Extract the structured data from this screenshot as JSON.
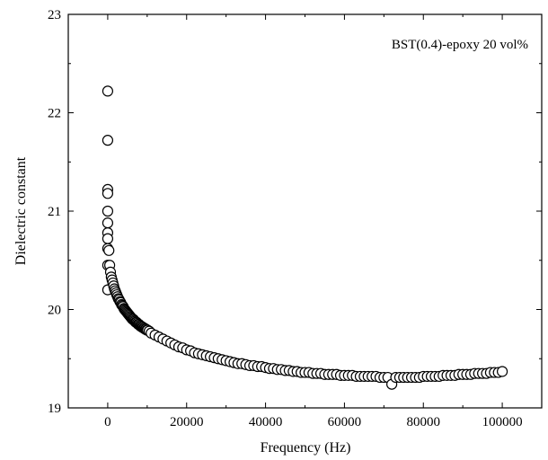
{
  "chart_data": {
    "type": "scatter",
    "title": "",
    "xlabel": "Frequency (Hz)",
    "ylabel": "Dielectric constant",
    "annotation": "BST(0.4)-epoxy 20 vol%",
    "xlim": [
      -10000,
      110000
    ],
    "ylim": [
      19,
      23
    ],
    "xticks": [
      0,
      20000,
      40000,
      60000,
      80000,
      100000
    ],
    "xtick_labels": [
      "0",
      "20000",
      "40000",
      "60000",
      "80000",
      "100000"
    ],
    "yticks": [
      19,
      20,
      21,
      22,
      23
    ],
    "ytick_labels": [
      "19",
      "20",
      "21",
      "22",
      "23"
    ],
    "grid": false,
    "legend": "none",
    "marker": "open-circle",
    "series": [
      {
        "x": [
          0,
          0,
          0,
          0,
          0,
          0,
          0,
          0,
          0,
          0,
          0,
          300,
          500,
          700,
          900,
          1100,
          1300,
          1500,
          1700,
          1900,
          2100,
          2300,
          2500,
          2700,
          2900,
          3100,
          3300,
          3500,
          3700,
          3900,
          4100,
          4300,
          4500,
          4700,
          4900,
          5100,
          5300,
          5500,
          5700,
          5900,
          6100,
          6300,
          6500,
          6700,
          6900,
          7100,
          7300,
          7500,
          7700,
          7900,
          8100,
          8300,
          8500,
          8700,
          8900,
          9100,
          9300,
          9500,
          9700,
          9900,
          10100,
          10500,
          11000,
          12000,
          13000,
          14000,
          15000,
          16000,
          17000,
          18000,
          19000,
          20000,
          21000,
          22000,
          23000,
          24000,
          25000,
          26000,
          27000,
          28000,
          29000,
          30000,
          31000,
          32000,
          33000,
          34000,
          35000,
          36000,
          37000,
          38000,
          39000,
          40000,
          41000,
          42000,
          43000,
          44000,
          45000,
          46000,
          47000,
          48000,
          49000,
          50000,
          51000,
          52000,
          53000,
          54000,
          55000,
          56000,
          57000,
          58000,
          59000,
          60000,
          61000,
          62000,
          63000,
          64000,
          65000,
          66000,
          67000,
          68000,
          69000,
          70000,
          71000,
          72000,
          73000,
          74000,
          75000,
          76000,
          77000,
          78000,
          79000,
          80000,
          81000,
          82000,
          83000,
          84000,
          85000,
          86000,
          87000,
          88000,
          89000,
          90000,
          91000,
          92000,
          93000,
          94000,
          95000,
          96000,
          97000,
          98000,
          99000,
          100000
        ],
        "y": [
          22.22,
          21.72,
          21.22,
          21.18,
          21.0,
          20.88,
          20.78,
          20.72,
          20.62,
          20.45,
          20.2,
          20.6,
          20.45,
          20.38,
          20.33,
          20.3,
          20.27,
          20.24,
          20.21,
          20.19,
          20.17,
          20.15,
          20.13,
          20.11,
          20.1,
          20.08,
          20.07,
          20.05,
          20.04,
          20.03,
          20.01,
          20.0,
          19.99,
          19.98,
          19.97,
          19.96,
          19.95,
          19.94,
          19.93,
          19.92,
          19.91,
          19.9,
          19.9,
          19.89,
          19.88,
          19.87,
          19.87,
          19.86,
          19.85,
          19.85,
          19.84,
          19.83,
          19.83,
          19.82,
          19.82,
          19.81,
          19.81,
          19.8,
          19.8,
          19.79,
          19.79,
          19.78,
          19.76,
          19.74,
          19.72,
          19.7,
          19.68,
          19.66,
          19.64,
          19.62,
          19.61,
          19.59,
          19.58,
          19.56,
          19.55,
          19.54,
          19.53,
          19.52,
          19.51,
          19.5,
          19.49,
          19.48,
          19.47,
          19.46,
          19.45,
          19.45,
          19.44,
          19.43,
          19.43,
          19.42,
          19.42,
          19.41,
          19.4,
          19.4,
          19.39,
          19.39,
          19.38,
          19.38,
          19.37,
          19.37,
          19.36,
          19.36,
          19.36,
          19.35,
          19.35,
          19.35,
          19.34,
          19.34,
          19.34,
          19.34,
          19.33,
          19.33,
          19.33,
          19.33,
          19.32,
          19.32,
          19.32,
          19.32,
          19.32,
          19.32,
          19.31,
          19.31,
          19.31,
          19.24,
          19.31,
          19.31,
          19.31,
          19.31,
          19.31,
          19.31,
          19.31,
          19.32,
          19.32,
          19.32,
          19.32,
          19.32,
          19.33,
          19.33,
          19.33,
          19.33,
          19.34,
          19.34,
          19.34,
          19.34,
          19.35,
          19.35,
          19.35,
          19.35,
          19.36,
          19.36,
          19.36,
          19.37
        ]
      }
    ]
  }
}
